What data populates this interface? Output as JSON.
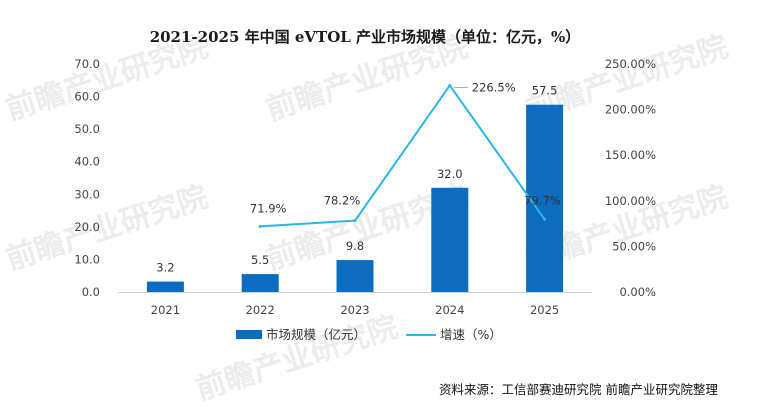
{
  "chart_data": {
    "type": "bar+line",
    "title": "2021-2025 年中国 eVTOL 产业市场规模（单位：亿元，%）",
    "categories": [
      "2021",
      "2022",
      "2023",
      "2024",
      "2025"
    ],
    "series": [
      {
        "name": "市场规模（亿元）",
        "type": "bar",
        "axis": "left",
        "color": "#0B6CC2",
        "values": [
          3.2,
          5.5,
          9.8,
          32.0,
          57.5
        ],
        "labels": [
          "3.2",
          "5.5",
          "9.8",
          "32.0",
          "57.5"
        ]
      },
      {
        "name": "增速（%）",
        "type": "line",
        "axis": "right",
        "color": "#29B6E8",
        "values": [
          null,
          71.9,
          78.2,
          226.5,
          79.7
        ],
        "labels": [
          "",
          "71.9%",
          "78.2%",
          "226.5%",
          "79.7%"
        ]
      }
    ],
    "y_left": {
      "min": 0,
      "max": 70,
      "step": 10,
      "ticks": [
        "0.0",
        "10.0",
        "20.0",
        "30.0",
        "40.0",
        "50.0",
        "60.0",
        "70.0"
      ]
    },
    "y_right": {
      "min": 0,
      "max": 250,
      "step": 50,
      "ticks": [
        "0.00%",
        "50.00%",
        "100.00%",
        "150.00%",
        "200.00%",
        "250.00%"
      ]
    },
    "legend": {
      "position": "bottom",
      "items": [
        {
          "label": "市场规模（亿元）",
          "kind": "bar"
        },
        {
          "label": "增速（%）",
          "kind": "line"
        }
      ]
    },
    "source": "资料来源：工信部赛迪研究院  前瞻产业研究院整理"
  },
  "watermark": {
    "text": "前瞻产业研究院"
  }
}
